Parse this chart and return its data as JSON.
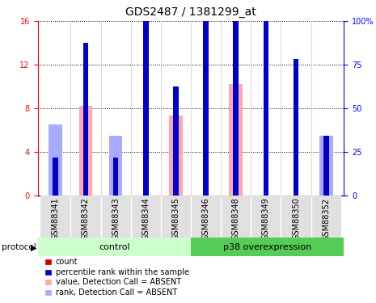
{
  "title": "GDS2487 / 1381299_at",
  "samples": [
    "GSM88341",
    "GSM88342",
    "GSM88343",
    "GSM88344",
    "GSM88345",
    "GSM88346",
    "GSM88348",
    "GSM88349",
    "GSM88350",
    "GSM88352"
  ],
  "count_values": [
    0.2,
    0.0,
    0.2,
    13.5,
    0.0,
    8.1,
    0.0,
    12.5,
    9.0,
    0.0
  ],
  "percentile_values": [
    3.5,
    14.0,
    3.5,
    23.5,
    10.0,
    17.0,
    17.0,
    21.5,
    12.5,
    5.5
  ],
  "absent_value_values": [
    2.8,
    8.2,
    2.5,
    0.0,
    7.3,
    0.0,
    10.2,
    0.0,
    0.0,
    3.2
  ],
  "absent_rank_values": [
    6.5,
    0.0,
    5.5,
    0.0,
    0.0,
    0.0,
    0.0,
    0.0,
    0.0,
    5.5
  ],
  "ylim_left": [
    0,
    16
  ],
  "ylim_right": [
    0,
    100
  ],
  "yticks_left": [
    0,
    4,
    8,
    12,
    16
  ],
  "ytick_labels_right": [
    "0",
    "25",
    "50",
    "75",
    "100%"
  ],
  "color_count": "#cc0000",
  "color_percentile": "#0000cc",
  "color_absent_value": "#ffaaaa",
  "color_absent_rank": "#aaaaff",
  "color_control_bg": "#ccffcc",
  "color_p38_bg": "#55cc55",
  "title_fontsize": 10,
  "tick_fontsize": 7
}
